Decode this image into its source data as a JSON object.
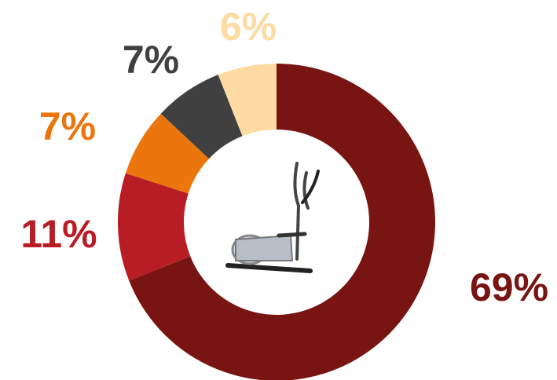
{
  "chart_data": {
    "type": "donut",
    "values": [
      69,
      11,
      7,
      7,
      6
    ],
    "value_labels": [
      "69%",
      "11%",
      "7%",
      "7%",
      "6%"
    ],
    "colors": [
      "#781512",
      "#b81c24",
      "#eb760e",
      "#404040",
      "#fddba2"
    ]
  }
}
